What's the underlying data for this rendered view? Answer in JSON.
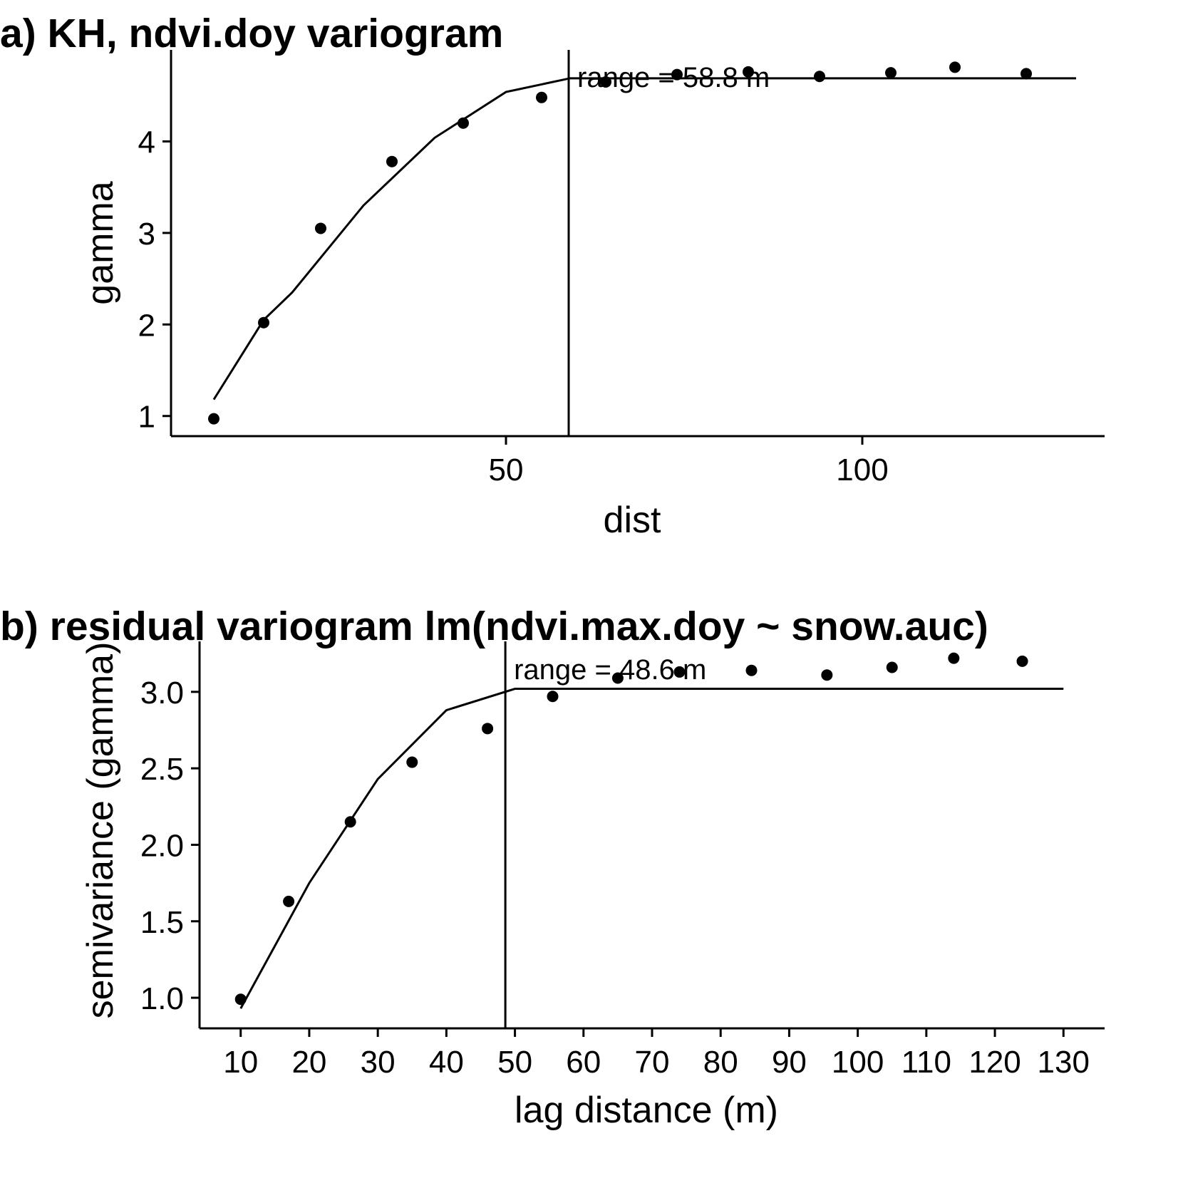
{
  "chart_data": [
    {
      "type": "scatter",
      "title": "a) KH, ndvi.doy variogram",
      "xlabel": "dist",
      "ylabel": "gamma",
      "xlim": [
        3,
        134
      ],
      "ylim": [
        0.78,
        5.0
      ],
      "x_ticks": [
        50,
        100
      ],
      "x_tick_labels": [
        "50",
        "100"
      ],
      "y_ticks": [
        1,
        2,
        3,
        4
      ],
      "y_tick_labels": [
        "1",
        "2",
        "3",
        "4"
      ],
      "grid": false,
      "range_value": 58.8,
      "range_label": "range = 58.8 m",
      "points": {
        "x": [
          9,
          16,
          24,
          34,
          44,
          55,
          64,
          74,
          84,
          94,
          104,
          113,
          123
        ],
        "y": [
          0.97,
          2.02,
          3.05,
          3.78,
          4.2,
          4.48,
          4.65,
          4.73,
          4.76,
          4.71,
          4.75,
          4.81,
          4.74
        ]
      },
      "fit": {
        "x": [
          9,
          16,
          20,
          30,
          40,
          50,
          59,
          130
        ],
        "y": [
          1.18,
          2.05,
          2.35,
          3.3,
          4.04,
          4.54,
          4.69,
          4.69
        ]
      }
    },
    {
      "type": "scatter",
      "title": "b) residual variogram lm(ndvi.max.doy ~ snow.auc)",
      "xlabel": "lag distance (m)",
      "ylabel": "semivariance (gamma)",
      "xlim": [
        4,
        136
      ],
      "ylim": [
        0.8,
        3.33
      ],
      "x_ticks": [
        10,
        20,
        30,
        40,
        50,
        60,
        70,
        80,
        90,
        100,
        110,
        120,
        130
      ],
      "x_tick_labels": [
        "10",
        "20",
        "30",
        "40",
        "50",
        "60",
        "70",
        "80",
        "90",
        "100",
        "110",
        "120",
        "130"
      ],
      "y_ticks": [
        1.0,
        1.5,
        2.0,
        2.5,
        3.0
      ],
      "y_tick_labels": [
        "1.0",
        "1.5",
        "2.0",
        "2.5",
        "3.0"
      ],
      "grid": false,
      "range_value": 48.6,
      "range_label": "range = 48.6 m",
      "points": {
        "x": [
          10,
          17,
          26,
          35,
          46,
          55.5,
          65,
          74,
          84.5,
          95.5,
          105,
          114,
          124
        ],
        "y": [
          0.99,
          1.63,
          2.15,
          2.54,
          2.76,
          2.97,
          3.09,
          3.13,
          3.14,
          3.11,
          3.16,
          3.22,
          3.2
        ]
      },
      "fit": {
        "x": [
          10,
          20,
          30,
          40,
          50,
          130
        ],
        "y": [
          0.93,
          1.75,
          2.43,
          2.88,
          3.02,
          3.02
        ]
      }
    }
  ]
}
